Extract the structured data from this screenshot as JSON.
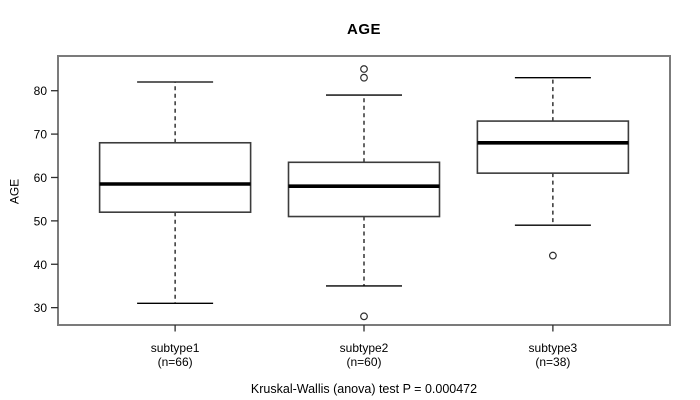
{
  "figure": {
    "title": "AGE",
    "y_axis_label": "AGE",
    "caption": "Kruskal-Wallis (anova) test P = 0.000472"
  },
  "colors": {
    "background": "#ffffff",
    "frame": "#7b7b7b",
    "axis": "#2e2e2e",
    "box_stroke": "#3c3c3c",
    "box_fill": "#ffffff",
    "median": "#000000",
    "whisker": "#000000",
    "outlier_stroke": "#2e2e2e",
    "text": "#000000"
  },
  "chart_data": {
    "type": "boxplot",
    "title": "AGE",
    "xlabel": "",
    "ylabel": "AGE",
    "caption": "Kruskal-Wallis (anova) test P = 0.000472",
    "y_ticks": [
      30,
      40,
      50,
      60,
      70,
      80
    ],
    "ylim": [
      26,
      88
    ],
    "grid": false,
    "legend": "none",
    "categories": [
      "subtype1",
      "subtype2",
      "subtype3"
    ],
    "groups": [
      {
        "label": "subtype1",
        "sublabel": "(n=66)",
        "n": 66,
        "whisker_low": 31,
        "q1": 52,
        "median": 58.5,
        "q3": 68,
        "whisker_high": 82,
        "outliers": []
      },
      {
        "label": "subtype2",
        "sublabel": "(n=60)",
        "n": 60,
        "whisker_low": 35,
        "q1": 51,
        "median": 58,
        "q3": 63.5,
        "whisker_high": 79,
        "outliers": [
          28,
          83,
          85
        ]
      },
      {
        "label": "subtype3",
        "sublabel": "(n=38)",
        "n": 38,
        "whisker_low": 49,
        "q1": 61,
        "median": 68,
        "q3": 73,
        "whisker_high": 83,
        "outliers": [
          42
        ]
      }
    ],
    "stat_test": {
      "name": "Kruskal-Wallis (anova) test",
      "p_value": "0.000472"
    }
  }
}
